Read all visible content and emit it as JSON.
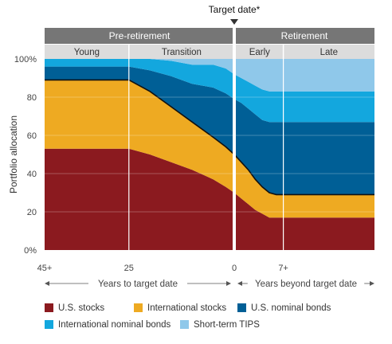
{
  "chart_data": {
    "type": "area",
    "stacked": true,
    "marker_label": "Target date*",
    "phases": [
      {
        "label": "Pre-retirement",
        "subphases": [
          "Young",
          "Transition"
        ]
      },
      {
        "label": "Retirement",
        "subphases": [
          "Early",
          "Late"
        ]
      }
    ],
    "ylabel": "Portfolio allocation",
    "ylim": [
      0,
      100
    ],
    "y_ticks": [
      "0%",
      "20",
      "40",
      "60",
      "80",
      "100%"
    ],
    "x_ticks": [
      "45+",
      "25",
      "0",
      "7+"
    ],
    "x_ranges": [
      "Years to target date",
      "Years beyond target date"
    ],
    "grid": true,
    "legend_position": "bottom",
    "x": [
      -45,
      -25,
      -20,
      -15,
      -10,
      -5,
      -2,
      0,
      1,
      2,
      3,
      4,
      5,
      6,
      7,
      12,
      20
    ],
    "series": [
      {
        "name": "U.S. stocks",
        "color": "#8B1A1F",
        "values": [
          53,
          53,
          50,
          46,
          42,
          37,
          33,
          30,
          27,
          24,
          21,
          19,
          17,
          17,
          17,
          17,
          17
        ]
      },
      {
        "name": "International stocks",
        "color": "#EEAA22",
        "values": [
          36,
          36,
          33,
          29,
          25,
          22,
          21,
          20,
          19,
          18,
          16,
          14,
          13,
          12,
          12,
          12,
          12
        ]
      },
      {
        "name": "U.S. nominal bonds",
        "color": "#005F96",
        "values": [
          7,
          7,
          11,
          16,
          20,
          26,
          28,
          29,
          31,
          32,
          34,
          35,
          37,
          38,
          38,
          38,
          38
        ]
      },
      {
        "name": "International nominal bonds",
        "color": "#13A7DE",
        "values": [
          4,
          4,
          6,
          8,
          10,
          12,
          13,
          13,
          13,
          14,
          15,
          16,
          16,
          16,
          16,
          16,
          16
        ]
      },
      {
        "name": "Short-term TIPS",
        "color": "#8FC8EA",
        "values": [
          0,
          0,
          0,
          1,
          3,
          3,
          5,
          8,
          10,
          12,
          14,
          16,
          17,
          17,
          17,
          17,
          17
        ]
      }
    ]
  }
}
